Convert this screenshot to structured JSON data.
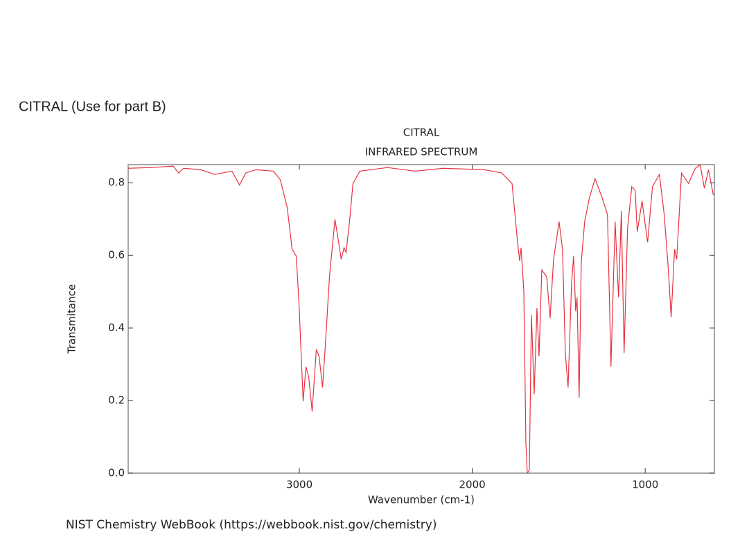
{
  "heading": "CITRAL (Use for part B)",
  "source": "NIST Chemistry WebBook (https://webbook.nist.gov/chemistry)",
  "chart_data": {
    "type": "line",
    "title": "CITRAL",
    "subtitle": "INFRARED SPECTRUM",
    "x_label": "Wavenumber (cm-1)",
    "y_label": "Transmitance",
    "xlim": [
      3990,
      600
    ],
    "ylim": [
      0,
      0.85
    ],
    "xticks": [
      3000,
      2000,
      1000
    ],
    "yticks": [
      {
        "value": 0,
        "label": "0.0"
      },
      0.2,
      0.4,
      0.6,
      0.8
    ],
    "series": [
      {
        "name": "CITRAL",
        "color": "#e8313f",
        "x": [
          3990,
          3850,
          3730,
          3698,
          3670,
          3570,
          3490,
          3390,
          3346,
          3310,
          3250,
          3150,
          3110,
          3070,
          3042,
          3018,
          3002,
          2978,
          2962,
          2946,
          2926,
          2902,
          2886,
          2866,
          2850,
          2826,
          2794,
          2770,
          2758,
          2742,
          2730,
          2710,
          2690,
          2650,
          2490,
          2330,
          2170,
          1930,
          1830,
          1770,
          1738,
          1726,
          1718,
          1702,
          1690,
          1682,
          1670,
          1658,
          1642,
          1626,
          1614,
          1598,
          1570,
          1550,
          1530,
          1498,
          1478,
          1462,
          1446,
          1426,
          1414,
          1402,
          1394,
          1382,
          1370,
          1350,
          1322,
          1290,
          1250,
          1218,
          1198,
          1174,
          1154,
          1138,
          1122,
          1102,
          1078,
          1058,
          1046,
          1018,
          986,
          958,
          918,
          890,
          866,
          850,
          830,
          818,
          790,
          750,
          710,
          682,
          658,
          634,
          606
        ],
        "values": [
          0.84,
          0.842,
          0.846,
          0.827,
          0.84,
          0.836,
          0.823,
          0.832,
          0.794,
          0.827,
          0.836,
          0.832,
          0.808,
          0.731,
          0.617,
          0.598,
          0.465,
          0.198,
          0.293,
          0.265,
          0.17,
          0.341,
          0.322,
          0.236,
          0.35,
          0.541,
          0.699,
          0.627,
          0.589,
          0.621,
          0.608,
          0.693,
          0.798,
          0.832,
          0.842,
          0.832,
          0.84,
          0.836,
          0.827,
          0.798,
          0.636,
          0.585,
          0.621,
          0.503,
          0.084,
          0.0,
          0.008,
          0.436,
          0.217,
          0.455,
          0.322,
          0.56,
          0.541,
          0.427,
          0.589,
          0.693,
          0.617,
          0.331,
          0.236,
          0.522,
          0.598,
          0.446,
          0.484,
          0.208,
          0.579,
          0.693,
          0.76,
          0.811,
          0.76,
          0.712,
          0.293,
          0.693,
          0.484,
          0.722,
          0.331,
          0.674,
          0.789,
          0.779,
          0.665,
          0.75,
          0.636,
          0.789,
          0.823,
          0.712,
          0.56,
          0.43,
          0.617,
          0.589,
          0.827,
          0.798,
          0.84,
          0.85,
          0.785,
          0.836,
          0.766
        ]
      }
    ]
  }
}
